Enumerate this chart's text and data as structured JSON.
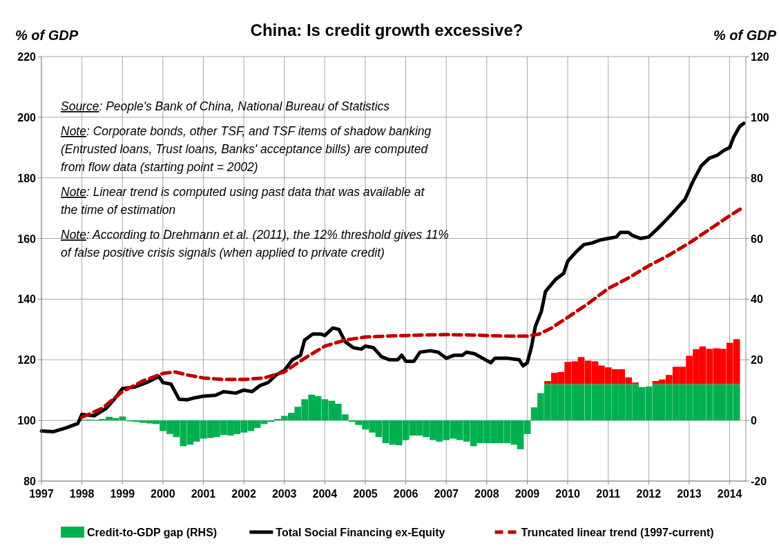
{
  "chart_data": {
    "type": "bar",
    "title": "China: Is credit growth excessive?",
    "ylabel": "% of GDP",
    "y2label": "% of GDP",
    "xlim": [
      1997,
      2014.4
    ],
    "xticks": [
      1997,
      1998,
      1999,
      2000,
      2001,
      2002,
      2003,
      2004,
      2005,
      2006,
      2007,
      2008,
      2009,
      2010,
      2011,
      2012,
      2013,
      2014
    ],
    "ylim": [
      80,
      220
    ],
    "yticks": [
      80,
      100,
      120,
      140,
      160,
      180,
      200,
      220
    ],
    "y2lim": [
      -20,
      120
    ],
    "y2ticks": [
      -20,
      0,
      20,
      40,
      60,
      80,
      100,
      120
    ],
    "grid": true,
    "legend": "bottom",
    "stacked": true,
    "annotations": [
      "Source: People's Bank of China, National Bureau of Statistics",
      "Note: Corporate bonds, other TSF, and TSF items of shadow banking (Entrusted loans, Trust loans, Banks' acceptance bills) are computed from flow data (starting point = 2002)",
      "Note: Linear trend is computed using past data that was available at the time of estimation",
      "Note: According to Drehmann et al. (2011), the 12% threshold gives 11% of false positive crisis signals (when applied to private credit)"
    ],
    "x": [
      1998,
      1998.17,
      1998.33,
      1998.5,
      1998.67,
      1998.83,
      1999,
      1999.17,
      1999.33,
      1999.5,
      1999.67,
      1999.83,
      2000,
      2000.17,
      2000.33,
      2000.5,
      2000.67,
      2000.83,
      2001,
      2001.17,
      2001.33,
      2001.5,
      2001.67,
      2001.83,
      2002,
      2002.17,
      2002.33,
      2002.5,
      2002.67,
      2002.83,
      2003,
      2003.17,
      2003.33,
      2003.5,
      2003.67,
      2003.83,
      2004,
      2004.17,
      2004.33,
      2004.5,
      2004.67,
      2004.83,
      2005,
      2005.17,
      2005.33,
      2005.5,
      2005.67,
      2005.83,
      2006,
      2006.17,
      2006.33,
      2006.5,
      2006.67,
      2006.83,
      2007,
      2007.17,
      2007.33,
      2007.5,
      2007.67,
      2007.83,
      2008,
      2008.17,
      2008.33,
      2008.5,
      2008.67,
      2008.83,
      2009,
      2009.17,
      2009.33,
      2009.5,
      2009.67,
      2009.83,
      2010,
      2010.17,
      2010.33,
      2010.5,
      2010.67,
      2010.83,
      2011,
      2011.17,
      2011.33,
      2011.5,
      2011.67,
      2011.83,
      2012,
      2012.17,
      2012.33,
      2012.5,
      2012.67,
      2012.83,
      2013,
      2013.17,
      2013.33,
      2013.5,
      2013.67,
      2013.83,
      2014,
      2014.17
    ],
    "series": [
      {
        "name": "Credit-to-GDP gap (RHS)",
        "type": "bar",
        "axis": "y2",
        "color": "#00b050",
        "values": [
          0.2,
          0.3,
          0.2,
          0.5,
          1.2,
          0.8,
          1.3,
          -0.3,
          -0.5,
          -0.8,
          -1,
          -1.2,
          -3.5,
          -4.5,
          -5.5,
          -8.5,
          -8,
          -7,
          -6,
          -5.8,
          -5.5,
          -4.8,
          -5,
          -4.5,
          -4,
          -3.5,
          -2.5,
          -1.2,
          -0.5,
          0.5,
          1.5,
          2.5,
          4.5,
          7,
          8.5,
          8,
          7,
          6.5,
          5.5,
          2,
          -0.5,
          -1.5,
          -3,
          -4,
          -5.5,
          -7.5,
          -8,
          -8.2,
          -6.5,
          -5,
          -5,
          -5.5,
          -6.5,
          -7,
          -6.5,
          -6,
          -6.5,
          -7,
          -8.5,
          -7.5,
          -7.5,
          -7.5,
          -7.5,
          -7.5,
          -8,
          -9.5,
          -4.5,
          4.3,
          9,
          12,
          12,
          12,
          12,
          12,
          12,
          12,
          12,
          12,
          12,
          12,
          12,
          12,
          12,
          11,
          11.2,
          12,
          12,
          12,
          12,
          12,
          12,
          12,
          12,
          12,
          12,
          12,
          12,
          12
        ]
      },
      {
        "type": "bar",
        "axis": "y2",
        "color": "#ff0000",
        "values": [
          null,
          null,
          null,
          null,
          null,
          null,
          null,
          null,
          null,
          null,
          null,
          null,
          null,
          null,
          null,
          null,
          null,
          null,
          null,
          null,
          null,
          null,
          null,
          null,
          null,
          null,
          null,
          null,
          null,
          null,
          null,
          null,
          null,
          null,
          null,
          null,
          null,
          null,
          null,
          null,
          null,
          null,
          null,
          null,
          null,
          null,
          null,
          null,
          null,
          null,
          null,
          null,
          null,
          null,
          null,
          null,
          null,
          null,
          null,
          null,
          null,
          null,
          null,
          null,
          null,
          null,
          null,
          null,
          null,
          1,
          3.7,
          4,
          7.3,
          7.5,
          8.9,
          7.7,
          7.5,
          6.1,
          5.5,
          4.9,
          4.9,
          2.2,
          0.5,
          null,
          null,
          1,
          1.5,
          3,
          5.7,
          5.7,
          9.3,
          11.5,
          12.4,
          11.6,
          11.8,
          11.6,
          13.6,
          14.8
        ]
      },
      {
        "name": "Total Social Financing ex-Equity",
        "type": "line",
        "color": "#000000",
        "x": [
          1997,
          1997.3,
          1997.6,
          1997.9,
          1998,
          1998.3,
          1998.6,
          1998.8,
          1999,
          1999.3,
          1999.6,
          1999.9,
          2000,
          2000.2,
          2000.4,
          2000.6,
          2000.8,
          2001,
          2001.3,
          2001.5,
          2001.8,
          2002,
          2002.2,
          2002.4,
          2002.6,
          2002.8,
          2003,
          2003.2,
          2003.4,
          2003.5,
          2003.7,
          2003.9,
          2004,
          2004.2,
          2004.35,
          2004.5,
          2004.7,
          2004.9,
          2005,
          2005.2,
          2005.4,
          2005.6,
          2005.8,
          2005.9,
          2006,
          2006.2,
          2006.35,
          2006.6,
          2006.8,
          2007,
          2007.2,
          2007.4,
          2007.5,
          2007.7,
          2007.9,
          2008.1,
          2008.2,
          2008.5,
          2008.8,
          2008.9,
          2009,
          2009.1,
          2009.2,
          2009.35,
          2009.45,
          2009.7,
          2009.9,
          2010,
          2010.2,
          2010.4,
          2010.6,
          2010.8,
          2011,
          2011.2,
          2011.3,
          2011.5,
          2011.6,
          2011.8,
          2012,
          2012.2,
          2012.35,
          2012.6,
          2012.9,
          2013.1,
          2013.3,
          2013.5,
          2013.7,
          2013.85,
          2014,
          2014.1,
          2014.25,
          2014.35
        ],
        "values": [
          96.5,
          96.3,
          97.5,
          99,
          102,
          101.5,
          104,
          107,
          110.5,
          111,
          112.5,
          114.5,
          112.5,
          112,
          107,
          106.8,
          107.5,
          108,
          108.3,
          109.5,
          109,
          110,
          109.5,
          111.5,
          112.5,
          115,
          116.5,
          120,
          121.5,
          126.5,
          128.5,
          128.5,
          128,
          130.5,
          130,
          126,
          124,
          123.5,
          124.5,
          124,
          121,
          120,
          120,
          121.5,
          119.5,
          119.5,
          122.5,
          123,
          122.5,
          120.5,
          121.5,
          121.5,
          122.5,
          122,
          120.5,
          119,
          120.5,
          120.5,
          120,
          118,
          119,
          124,
          131,
          136,
          142.5,
          146.5,
          148.5,
          152.5,
          155.5,
          158,
          158.5,
          159.5,
          160,
          160.5,
          162,
          162,
          161,
          160,
          160.5,
          163,
          165,
          168.5,
          173,
          179,
          184,
          186.5,
          187.5,
          189,
          190,
          193.5,
          197,
          198
        ]
      },
      {
        "name": "Truncated linear trend (1997-current)",
        "type": "line",
        "color": "#c00000",
        "line_style": "dashed",
        "x": [
          1998,
          1998.5,
          1999,
          1999.5,
          2000,
          2000.3,
          2000.6,
          2001,
          2001.5,
          2002,
          2002.5,
          2003,
          2003.5,
          2004,
          2004.5,
          2005,
          2005.5,
          2006,
          2006.5,
          2007,
          2007.5,
          2008,
          2008.5,
          2009,
          2009.3,
          2009.6,
          2010,
          2010.5,
          2011,
          2011.5,
          2012,
          2012.5,
          2013,
          2013.5,
          2014,
          2014.3
        ],
        "values": [
          101,
          104,
          109.5,
          113,
          115.5,
          116,
          115,
          114,
          113.5,
          113.5,
          114,
          116,
          120.5,
          124.5,
          126.5,
          127.5,
          127.8,
          128,
          128.2,
          128.3,
          128.2,
          128,
          127.8,
          127.8,
          128.5,
          130.5,
          134,
          138.5,
          143.5,
          147,
          151,
          154.5,
          158.5,
          163,
          167.5,
          170
        ]
      }
    ]
  }
}
